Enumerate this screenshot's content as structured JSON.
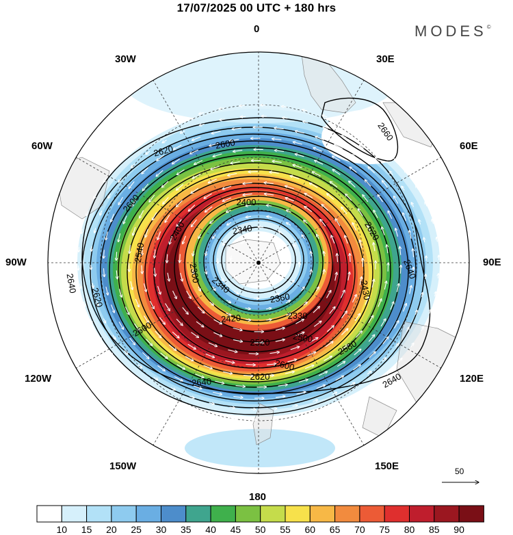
{
  "title": "17/07/2025  00 UTC  + 180 hrs",
  "brand": "MODES",
  "brand_mark": "©",
  "longitude_labels": {
    "top": "0",
    "bottom": "180",
    "left": "90W",
    "right": "90E",
    "l30": "30W",
    "r30": "30E",
    "l60": "60W",
    "r60": "60E",
    "l120": "120W",
    "r120": "120E",
    "l150": "150W",
    "r150": "150E"
  },
  "contour_labels": [
    "2660",
    "2620",
    "2600",
    "2600",
    "2620",
    "2640",
    "2640",
    "2620",
    "2600",
    "2540",
    "2400",
    "2400",
    "2340",
    "2340",
    "2300",
    "2360",
    "2420",
    "2500",
    "2580",
    "2600",
    "2620",
    "2640",
    "2640",
    "2520",
    "2430",
    "2330"
  ],
  "reference_vector": "50",
  "colorbar": {
    "labels": [
      "10",
      "15",
      "20",
      "25",
      "30",
      "35",
      "40",
      "45",
      "50",
      "55",
      "60",
      "65",
      "70",
      "75",
      "80",
      "85",
      "90"
    ],
    "colors": [
      "#ffffff",
      "#d6f0fb",
      "#b2e1f7",
      "#8ecbef",
      "#6aaee3",
      "#4d8dcb",
      "#3fa58e",
      "#3fb04c",
      "#7bc142",
      "#c5dc4b",
      "#f7e14b",
      "#f7b846",
      "#f28b3e",
      "#ec5b36",
      "#df2f2e",
      "#bf1e2d",
      "#9b1720",
      "#7a0f16"
    ]
  }
}
